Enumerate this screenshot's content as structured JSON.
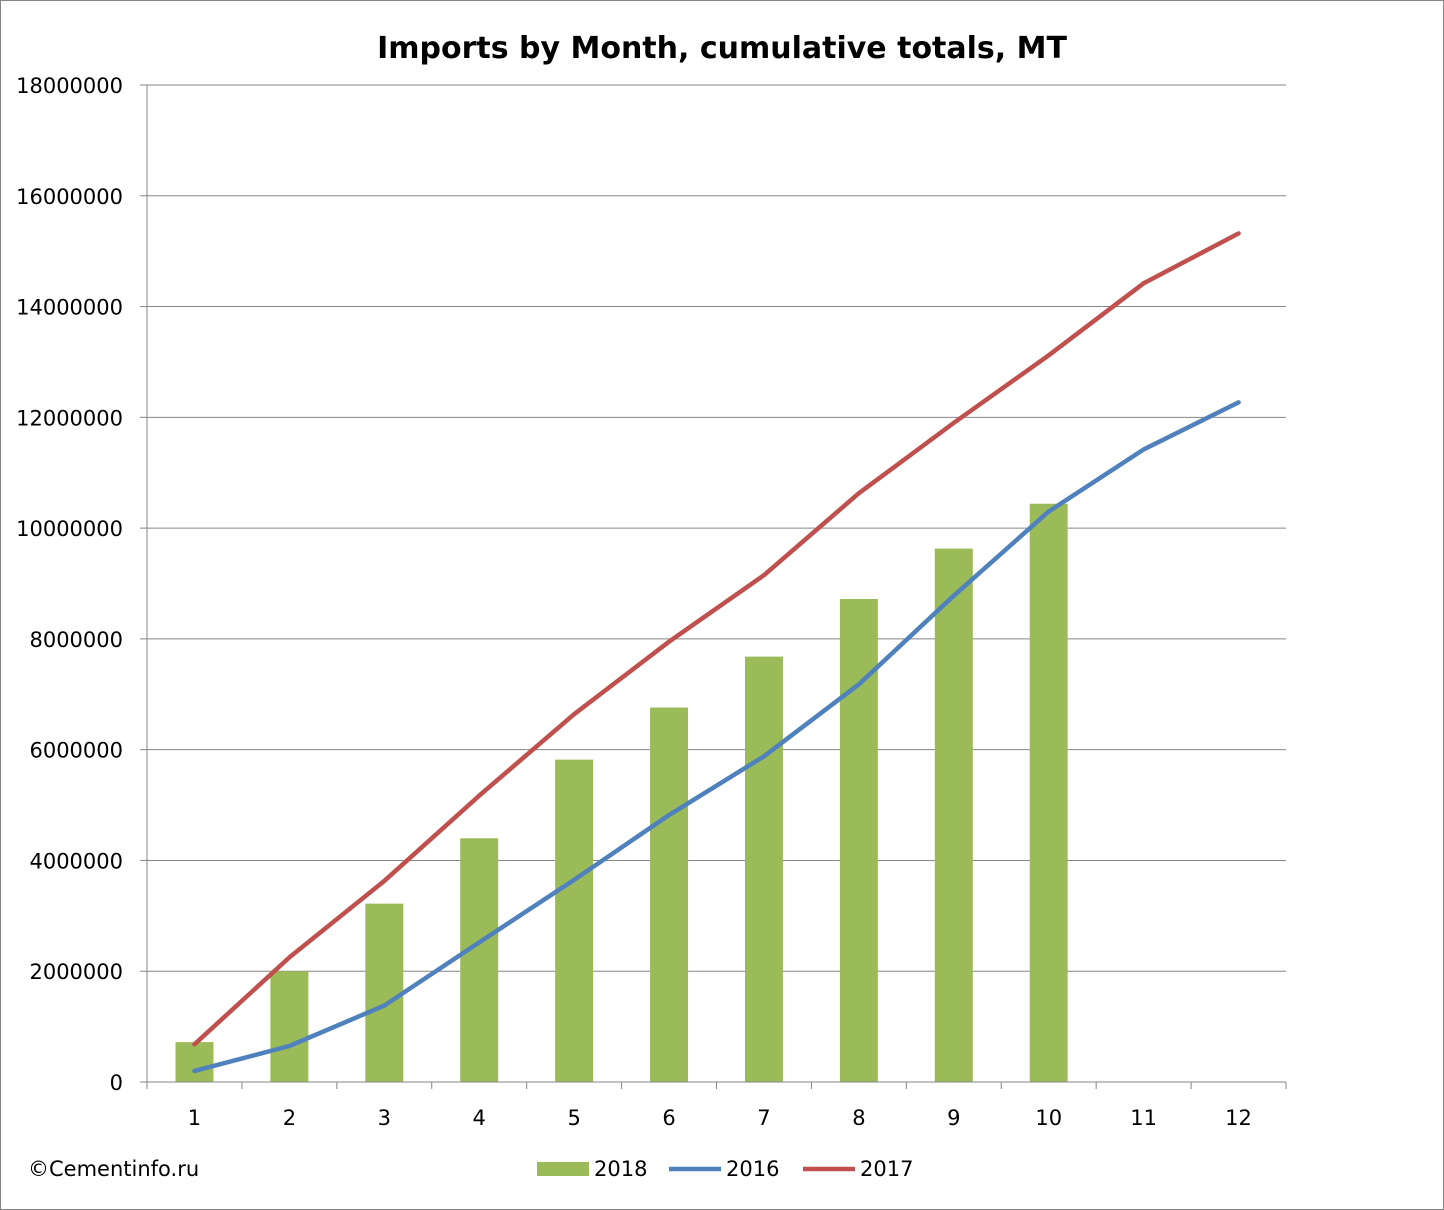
{
  "chart_data": {
    "type": "bar",
    "title": "Imports by Month, cumulative totals, MT",
    "categories": [
      "1",
      "2",
      "3",
      "4",
      "5",
      "6",
      "7",
      "8",
      "9",
      "10",
      "11",
      "12"
    ],
    "y_ticks": [
      "0",
      "2000000",
      "4000000",
      "6000000",
      "8000000",
      "10000000",
      "12000000",
      "14000000",
      "16000000",
      "18000000"
    ],
    "ylim": [
      0,
      18000000
    ],
    "grid": true,
    "legend_position": "bottom",
    "series": [
      {
        "name": "2018",
        "kind": "bar",
        "color": "#9BBB59",
        "values": [
          720000,
          2000000,
          3220000,
          4400000,
          5820000,
          6760000,
          7680000,
          8720000,
          9630000,
          10440000,
          null,
          null
        ]
      },
      {
        "name": "2016",
        "kind": "line",
        "color": "#4F81BD",
        "values": [
          200000,
          650000,
          1380000,
          2520000,
          3650000,
          4820000,
          5880000,
          7180000,
          8780000,
          10300000,
          11420000,
          12270000
        ]
      },
      {
        "name": "2017",
        "kind": "line",
        "color": "#C0504D",
        "values": [
          680000,
          2250000,
          3630000,
          5170000,
          6640000,
          7950000,
          9150000,
          10630000,
          11900000,
          13120000,
          14420000,
          15320000
        ]
      }
    ]
  },
  "credit": "©Cementinfo.ru"
}
